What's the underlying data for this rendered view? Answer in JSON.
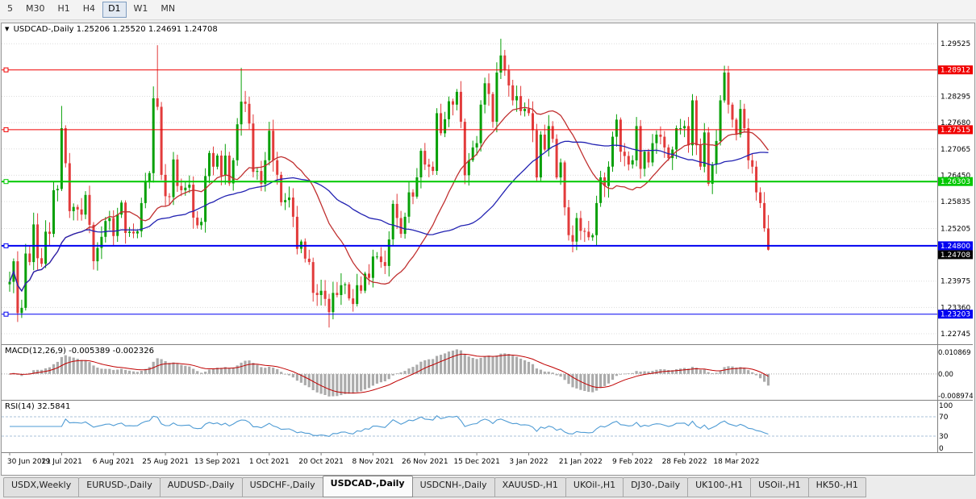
{
  "icons": {
    "marker_triangle": "▼"
  },
  "toolbar": {
    "timeframes": [
      {
        "label": "5",
        "active": false
      },
      {
        "label": "M30",
        "active": false
      },
      {
        "label": "H1",
        "active": false
      },
      {
        "label": "H4",
        "active": false
      },
      {
        "label": "D1",
        "active": true
      },
      {
        "label": "W1",
        "active": false
      },
      {
        "label": "MN",
        "active": false
      }
    ]
  },
  "chart": {
    "title": "USDCAD-,Daily",
    "ohlc_text": "1.25206 1.25520 1.24691 1.24708",
    "colors": {
      "up": "#07A007",
      "down": "#E23B3B",
      "ma_fast": "#C03030",
      "ma_slow": "#2222B2",
      "macd_hist": "#ABABAB",
      "macd_signal": "#C00000",
      "rsi_line": "#4E9BD4",
      "rsi_level": "#A9C0D8",
      "grid": "#DCDCDC"
    },
    "price_axis": {
      "labels": [
        "1.29525",
        "1.28295",
        "1.27680",
        "1.27065",
        "1.26450",
        "1.25835",
        "1.25205",
        "1.23975",
        "1.23360",
        "1.22745"
      ]
    },
    "hlines": [
      {
        "price": 1.28912,
        "label": "1.28912",
        "color": "#F00000",
        "width": 1
      },
      {
        "price": 1.27515,
        "label": "1.27515",
        "color": "#F00000",
        "width": 1
      },
      {
        "price": 1.26303,
        "label": "1.26303",
        "color": "#00C800",
        "width": 2
      },
      {
        "price": 1.248,
        "label": "1.24800",
        "color": "#0000F0",
        "width": 2
      },
      {
        "price": 1.23203,
        "label": "1.23203",
        "color": "#0000F0",
        "width": 1
      }
    ],
    "current_price": {
      "value": 1.24708,
      "label": "1.24708",
      "color": "#000000"
    },
    "dates": [
      "30 Jun 2021",
      "19 Jul 2021",
      "6 Aug 2021",
      "25 Aug 2021",
      "13 Sep 2021",
      "1 Oct 2021",
      "20 Oct 2021",
      "8 Nov 2021",
      "26 Nov 2021",
      "15 Dec 2021",
      "3 Jan 2022",
      "21 Jan 2022",
      "9 Feb 2022",
      "28 Feb 2022",
      "18 Mar 2022"
    ],
    "date_step": 13
  },
  "chart_data": {
    "type": "candlestick",
    "symbol": "USDCAD-",
    "period": "Daily",
    "price_range": [
      1.225,
      1.3
    ],
    "open_first": 1.239,
    "ma_periods": [
      20,
      45
    ],
    "closes": [
      1.2396,
      1.2444,
      1.2323,
      1.2335,
      1.2462,
      1.2442,
      1.253,
      1.2451,
      1.2438,
      1.2513,
      1.2508,
      1.261,
      1.2613,
      1.2755,
      1.2673,
      1.2561,
      1.2571,
      1.2565,
      1.2553,
      1.2599,
      1.2529,
      1.2444,
      1.2475,
      1.2501,
      1.2538,
      1.2545,
      1.2503,
      1.2553,
      1.2581,
      1.251,
      1.2513,
      1.2509,
      1.2514,
      1.258,
      1.2629,
      1.265,
      1.2825,
      1.2805,
      1.2646,
      1.2596,
      1.2594,
      1.2682,
      1.262,
      1.261,
      1.2616,
      1.2623,
      1.2546,
      1.2528,
      1.2536,
      1.2643,
      1.2697,
      1.2665,
      1.2691,
      1.2644,
      1.2691,
      1.2626,
      1.268,
      1.2764,
      1.2817,
      1.2812,
      1.2766,
      1.2653,
      1.2655,
      1.2625,
      1.268,
      1.2749,
      1.268,
      1.2646,
      1.2582,
      1.2587,
      1.2593,
      1.2548,
      1.2473,
      1.249,
      1.245,
      1.2442,
      1.237,
      1.2365,
      1.2375,
      1.2356,
      1.2325,
      1.237,
      1.2365,
      1.2388,
      1.239,
      1.2357,
      1.2344,
      1.2388,
      1.2375,
      1.2415,
      1.2405,
      1.2455,
      1.2455,
      1.2442,
      1.2433,
      1.2495,
      1.2578,
      1.2545,
      1.2508,
      1.2548,
      1.2605,
      1.2595,
      1.264,
      1.2702,
      1.267,
      1.2665,
      1.2655,
      1.279,
      1.2743,
      1.2776,
      1.2818,
      1.281,
      1.284,
      1.277,
      1.2645,
      1.268,
      1.271,
      1.272,
      1.281,
      1.286,
      1.2835,
      1.277,
      1.2885,
      1.2925,
      1.289,
      1.2855,
      1.282,
      1.283,
      1.2795,
      1.28,
      1.279,
      1.275,
      1.264,
      1.274,
      1.2705,
      1.276,
      1.273,
      1.264,
      1.2675,
      1.257,
      1.2505,
      1.249,
      1.2545,
      1.2515,
      1.2513,
      1.25,
      1.2505,
      1.258,
      1.264,
      1.262,
      1.2665,
      1.2735,
      1.2775,
      1.27,
      1.269,
      1.267,
      1.268,
      1.276,
      1.266,
      1.27,
      1.2675,
      1.272,
      1.274,
      1.2735,
      1.271,
      1.2685,
      1.2705,
      1.2755,
      1.2755,
      1.276,
      1.2715,
      1.282,
      1.2715,
      1.2665,
      1.2745,
      1.2625,
      1.267,
      1.2725,
      1.282,
      1.2885,
      1.281,
      1.2775,
      1.274,
      1.28,
      1.2755,
      1.268,
      1.2665,
      1.2605,
      1.258,
      1.2521,
      1.24708
    ],
    "wick_overrides": [
      {
        "i": 2,
        "low": 1.2302
      },
      {
        "i": 13,
        "high": 1.2807
      },
      {
        "i": 37,
        "high": 1.2949
      },
      {
        "i": 58,
        "high": 1.2896
      },
      {
        "i": 80,
        "low": 1.2289
      },
      {
        "i": 123,
        "high": 1.2964
      },
      {
        "i": 179,
        "high": 1.2901
      }
    ],
    "last_candle": {
      "open": 1.25206,
      "high": 1.2552,
      "low": 1.24691,
      "close": 1.24708
    }
  },
  "macd": {
    "name": "MACD(12,26,9)",
    "values": "-0.005389 -0.002326",
    "params": {
      "fast": 12,
      "slow": 26,
      "signal": 9
    },
    "axis": {
      "top": "0.010869",
      "zero": "0.00",
      "bottom": "-0.008974"
    }
  },
  "rsi": {
    "name": "RSI(14)",
    "value": "32.5841",
    "period": 14,
    "levels": [
      70,
      30
    ],
    "axis": [
      "100",
      "70",
      "30",
      "0"
    ]
  },
  "tabs": [
    {
      "label": "USDX,Weekly",
      "active": false
    },
    {
      "label": "EURUSD-,Daily",
      "active": false
    },
    {
      "label": "AUDUSD-,Daily",
      "active": false
    },
    {
      "label": "USDCHF-,Daily",
      "active": false
    },
    {
      "label": "USDCAD-,Daily",
      "active": true
    },
    {
      "label": "USDCNH-,Daily",
      "active": false
    },
    {
      "label": "XAUUSD-,H1",
      "active": false
    },
    {
      "label": "UKOil-,H1",
      "active": false
    },
    {
      "label": "DJ30-,Daily",
      "active": false
    },
    {
      "label": "UK100-,H1",
      "active": false
    },
    {
      "label": "USOil-,H1",
      "active": false
    },
    {
      "label": "HK50-,H1",
      "active": false
    }
  ]
}
